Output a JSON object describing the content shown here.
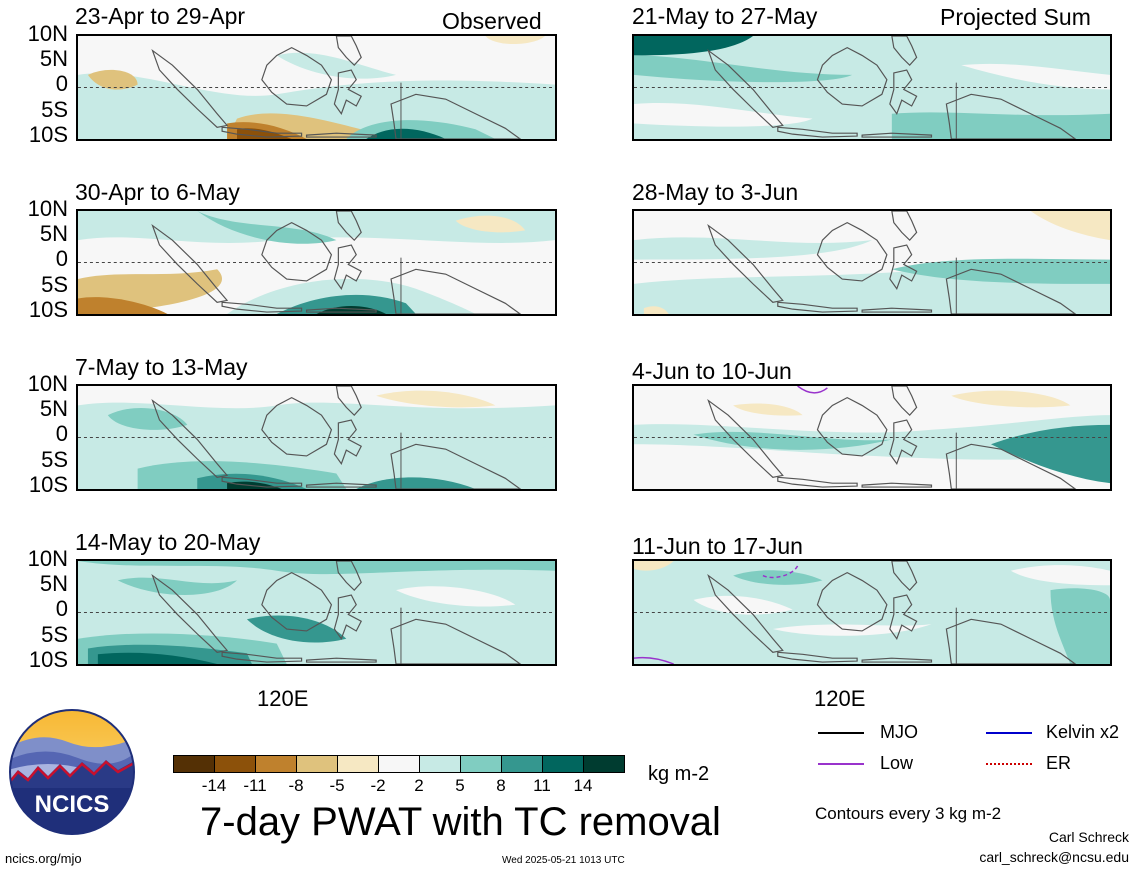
{
  "left_header": "Observed",
  "right_header": "Projected Sum",
  "lat_labels": [
    "10N",
    "5N",
    "0",
    "5S",
    "10S"
  ],
  "x_label": "120E",
  "left_panels": [
    {
      "period": "23-Apr to 29-Apr"
    },
    {
      "period": "30-Apr to 6-May"
    },
    {
      "period": "7-May to 13-May"
    },
    {
      "period": "14-May to 20-May"
    }
  ],
  "right_panels": [
    {
      "period": "21-May to 27-May"
    },
    {
      "period": "28-May to 3-Jun"
    },
    {
      "period": "4-Jun to 10-Jun"
    },
    {
      "period": "11-Jun to 17-Jun"
    }
  ],
  "legend": {
    "colors": [
      "#543005",
      "#8c510a",
      "#bf812d",
      "#dfc27d",
      "#f6e8c3",
      "#f7f7f7",
      "#c7eae5",
      "#80cdc1",
      "#35978f",
      "#01665e",
      "#003c30"
    ],
    "ticks": [
      "-14",
      "-11",
      "-8",
      "-5",
      "-2",
      "2",
      "5",
      "8",
      "11",
      "14"
    ],
    "units": "kg m-2"
  },
  "title": "7-day PWAT with TC removal",
  "logo_text": "NCICS",
  "website": "ncics.org/mjo",
  "timestamp": "Wed 2025-05-21 1013 UTC",
  "contour_note": "Contours every 3 kg m-2",
  "author": "Carl Schreck",
  "email": "carl_schreck@ncsu.edu",
  "line_keys": [
    {
      "label": "MJO",
      "color": "#000000",
      "style": "solid"
    },
    {
      "label": "Kelvin x2",
      "color": "#0000cc",
      "style": "solid"
    },
    {
      "label": "Low",
      "color": "#9933cc",
      "style": "solid"
    },
    {
      "label": "ER",
      "color": "#cc0000",
      "style": "dotted"
    }
  ]
}
